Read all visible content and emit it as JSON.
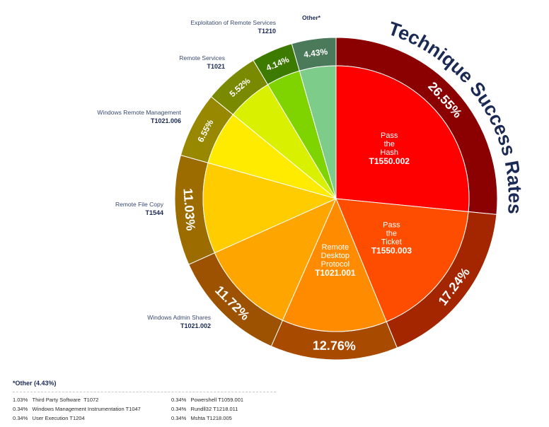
{
  "chart_data": {
    "type": "pie",
    "title": "Technique Success Rates",
    "slices": [
      {
        "name": "Pass the Hash",
        "id": "T1550.002",
        "value": 26.55,
        "label": "26.55%",
        "inner": "#ff0000",
        "outer": "#8b0000",
        "show_inner_label": true,
        "show_outer_label": false
      },
      {
        "name": "Pass the Ticket",
        "id": "T1550.003",
        "value": 17.24,
        "label": "17.24%",
        "inner": "#ff4d00",
        "outer": "#a42600",
        "show_inner_label": true,
        "show_outer_label": false
      },
      {
        "name": "Remote Desktop Protocol",
        "id": "T1021.001",
        "value": 12.76,
        "label": "12.76%",
        "inner": "#ff8c00",
        "outer": "#a84a00",
        "show_inner_label": true,
        "show_outer_label": false
      },
      {
        "name": "Windows Admin Shares",
        "id": "T1021.002",
        "value": 11.72,
        "label": "11.72%",
        "inner": "#ffa500",
        "outer": "#9c5200",
        "show_inner_label": false,
        "show_outer_label": true
      },
      {
        "name": "Remote File Copy",
        "id": "T1544",
        "value": 11.03,
        "label": "11.03%",
        "inner": "#ffcc00",
        "outer": "#9c6c00",
        "show_inner_label": false,
        "show_outer_label": true
      },
      {
        "name": "Windows Remote Management",
        "id": "T1021.006",
        "value": 6.55,
        "label": "6.55%",
        "inner": "#ffeb00",
        "outer": "#988800",
        "show_inner_label": false,
        "show_outer_label": true
      },
      {
        "name": "Remote Services",
        "id": "T1021",
        "value": 5.52,
        "label": "5.52%",
        "inner": "#d9f000",
        "outer": "#7a8a00",
        "show_inner_label": false,
        "show_outer_label": true
      },
      {
        "name": "Exploitation of Remote Services",
        "id": "T1210",
        "value": 4.14,
        "label": "4.14%",
        "inner": "#7fd400",
        "outer": "#3d7a00",
        "show_inner_label": false,
        "show_outer_label": true
      },
      {
        "name": "Other*",
        "id": "",
        "value": 4.43,
        "label": "4.43%",
        "inner": "#7ecc8a",
        "outer": "#4a7a5a",
        "show_inner_label": false,
        "show_outer_label": true
      }
    ]
  },
  "other_breakdown": {
    "title": "*Other (4.43%)",
    "items": [
      {
        "pct": "1.03%",
        "name": "Third Party Software",
        "id": "T1072"
      },
      {
        "pct": "0.34%",
        "name": "Powershell",
        "id": "T1059.001"
      },
      {
        "pct": "0.34%",
        "name": "Windows Management Instrumentation",
        "id": "T1047"
      },
      {
        "pct": "0.34%",
        "name": "Rundll32",
        "id": "T1218.011"
      },
      {
        "pct": "0.34%",
        "name": "User Execution",
        "id": "T1204"
      },
      {
        "pct": "0.34%",
        "name": "Mshta",
        "id": "T1218.005"
      }
    ]
  },
  "colors": {
    "navy": "#1b2a55",
    "label_grey": "#3a4a70"
  }
}
